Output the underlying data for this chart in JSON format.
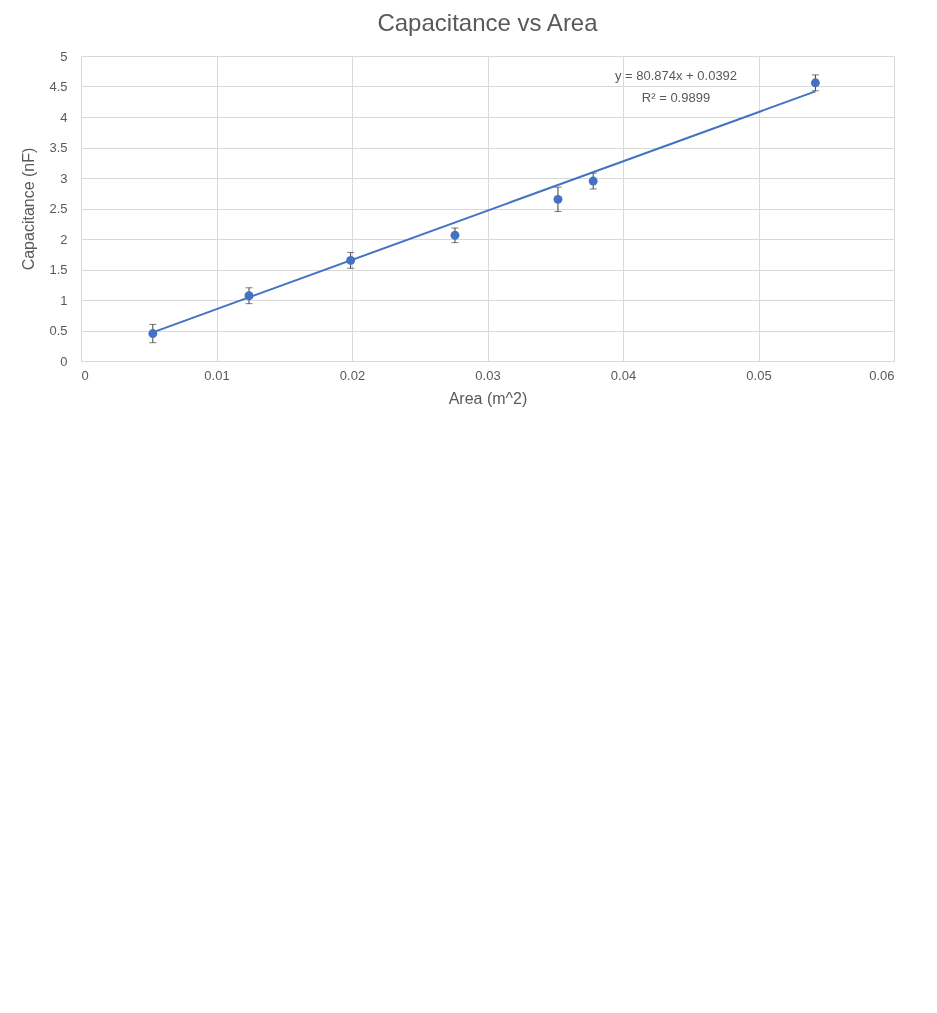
{
  "chart_data": {
    "type": "scatter",
    "title": "Capacitance vs Area",
    "xlabel": "Area (m^2)",
    "ylabel": "Capacitance (nF)",
    "x": [
      0.0053,
      0.0124,
      0.0199,
      0.0276,
      0.0352,
      0.0378,
      0.0542
    ],
    "series": [
      {
        "color": "#4472c4",
        "values": [
          0.45,
          1.07,
          1.65,
          2.06,
          2.65,
          2.95,
          4.56
        ],
        "errors": [
          0.15,
          0.13,
          0.13,
          0.12,
          0.2,
          0.13,
          0.13
        ]
      },
      {
        "type": "line",
        "color": "#4472c4",
        "x": [
          0.0053,
          0.0542
        ],
        "values": [
          0.47,
          4.42
        ],
        "marker": "none"
      }
    ],
    "annotations": [
      "y = 80.874x + 0.0392",
      "R² = 0.9899"
    ],
    "xlim": [
      0,
      0.06
    ],
    "xticks": [
      0,
      0.01,
      0.02,
      0.03,
      0.04,
      0.05,
      0.06
    ],
    "ylim": [
      0,
      5
    ],
    "yticks": [
      0,
      0.5,
      1,
      1.5,
      2,
      2.5,
      3,
      3.5,
      4,
      4.5,
      5
    ],
    "grid": true,
    "marker": "circle",
    "line_style": "solid"
  }
}
